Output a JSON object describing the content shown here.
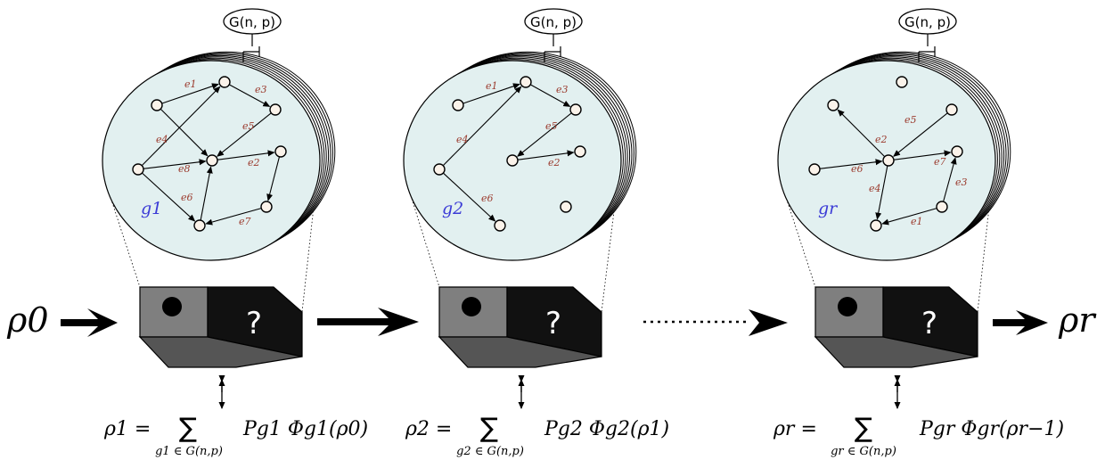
{
  "input_state": "ρ0",
  "output_state": "ρr",
  "ensemble_label": "G(n, p)",
  "box_label": "?",
  "panels": [
    {
      "graph_label": "g1",
      "edge_labels": [
        "e1",
        "e2",
        "e3",
        "e4",
        "e5",
        "e6",
        "e7",
        "e8"
      ],
      "formula": {
        "lhs": "ρ1 =",
        "sum": "∑",
        "sum_index": "g1 ∈ G(n,p)",
        "term": "Pg1 Φg1(ρ0)"
      }
    },
    {
      "graph_label": "g2",
      "edge_labels": [
        "e1",
        "e2",
        "e3",
        "e4",
        "e5",
        "e6"
      ],
      "formula": {
        "lhs": "ρ2 =",
        "sum": "∑",
        "sum_index": "g2 ∈ G(n,p)",
        "term": "Pg2 Φg2(ρ1)"
      }
    },
    {
      "graph_label": "gr",
      "edge_labels": [
        "e1",
        "e2",
        "e3",
        "e4",
        "e5",
        "e6",
        "e7"
      ],
      "formula": {
        "lhs": "ρr =",
        "sum": "∑",
        "sum_index": "gr ∈ G(n,p)",
        "term": "Pgr Φgr(ρr−1)"
      }
    }
  ],
  "colors": {
    "disk_fill": "#e2f0f0",
    "node_fill": "#fbf3ea",
    "edge_label": "#9b3b2e",
    "graph_label": "#3b3bd6",
    "box_front": "#7f7f7f",
    "box_side": "#111111",
    "box_bottom": "#555555"
  }
}
